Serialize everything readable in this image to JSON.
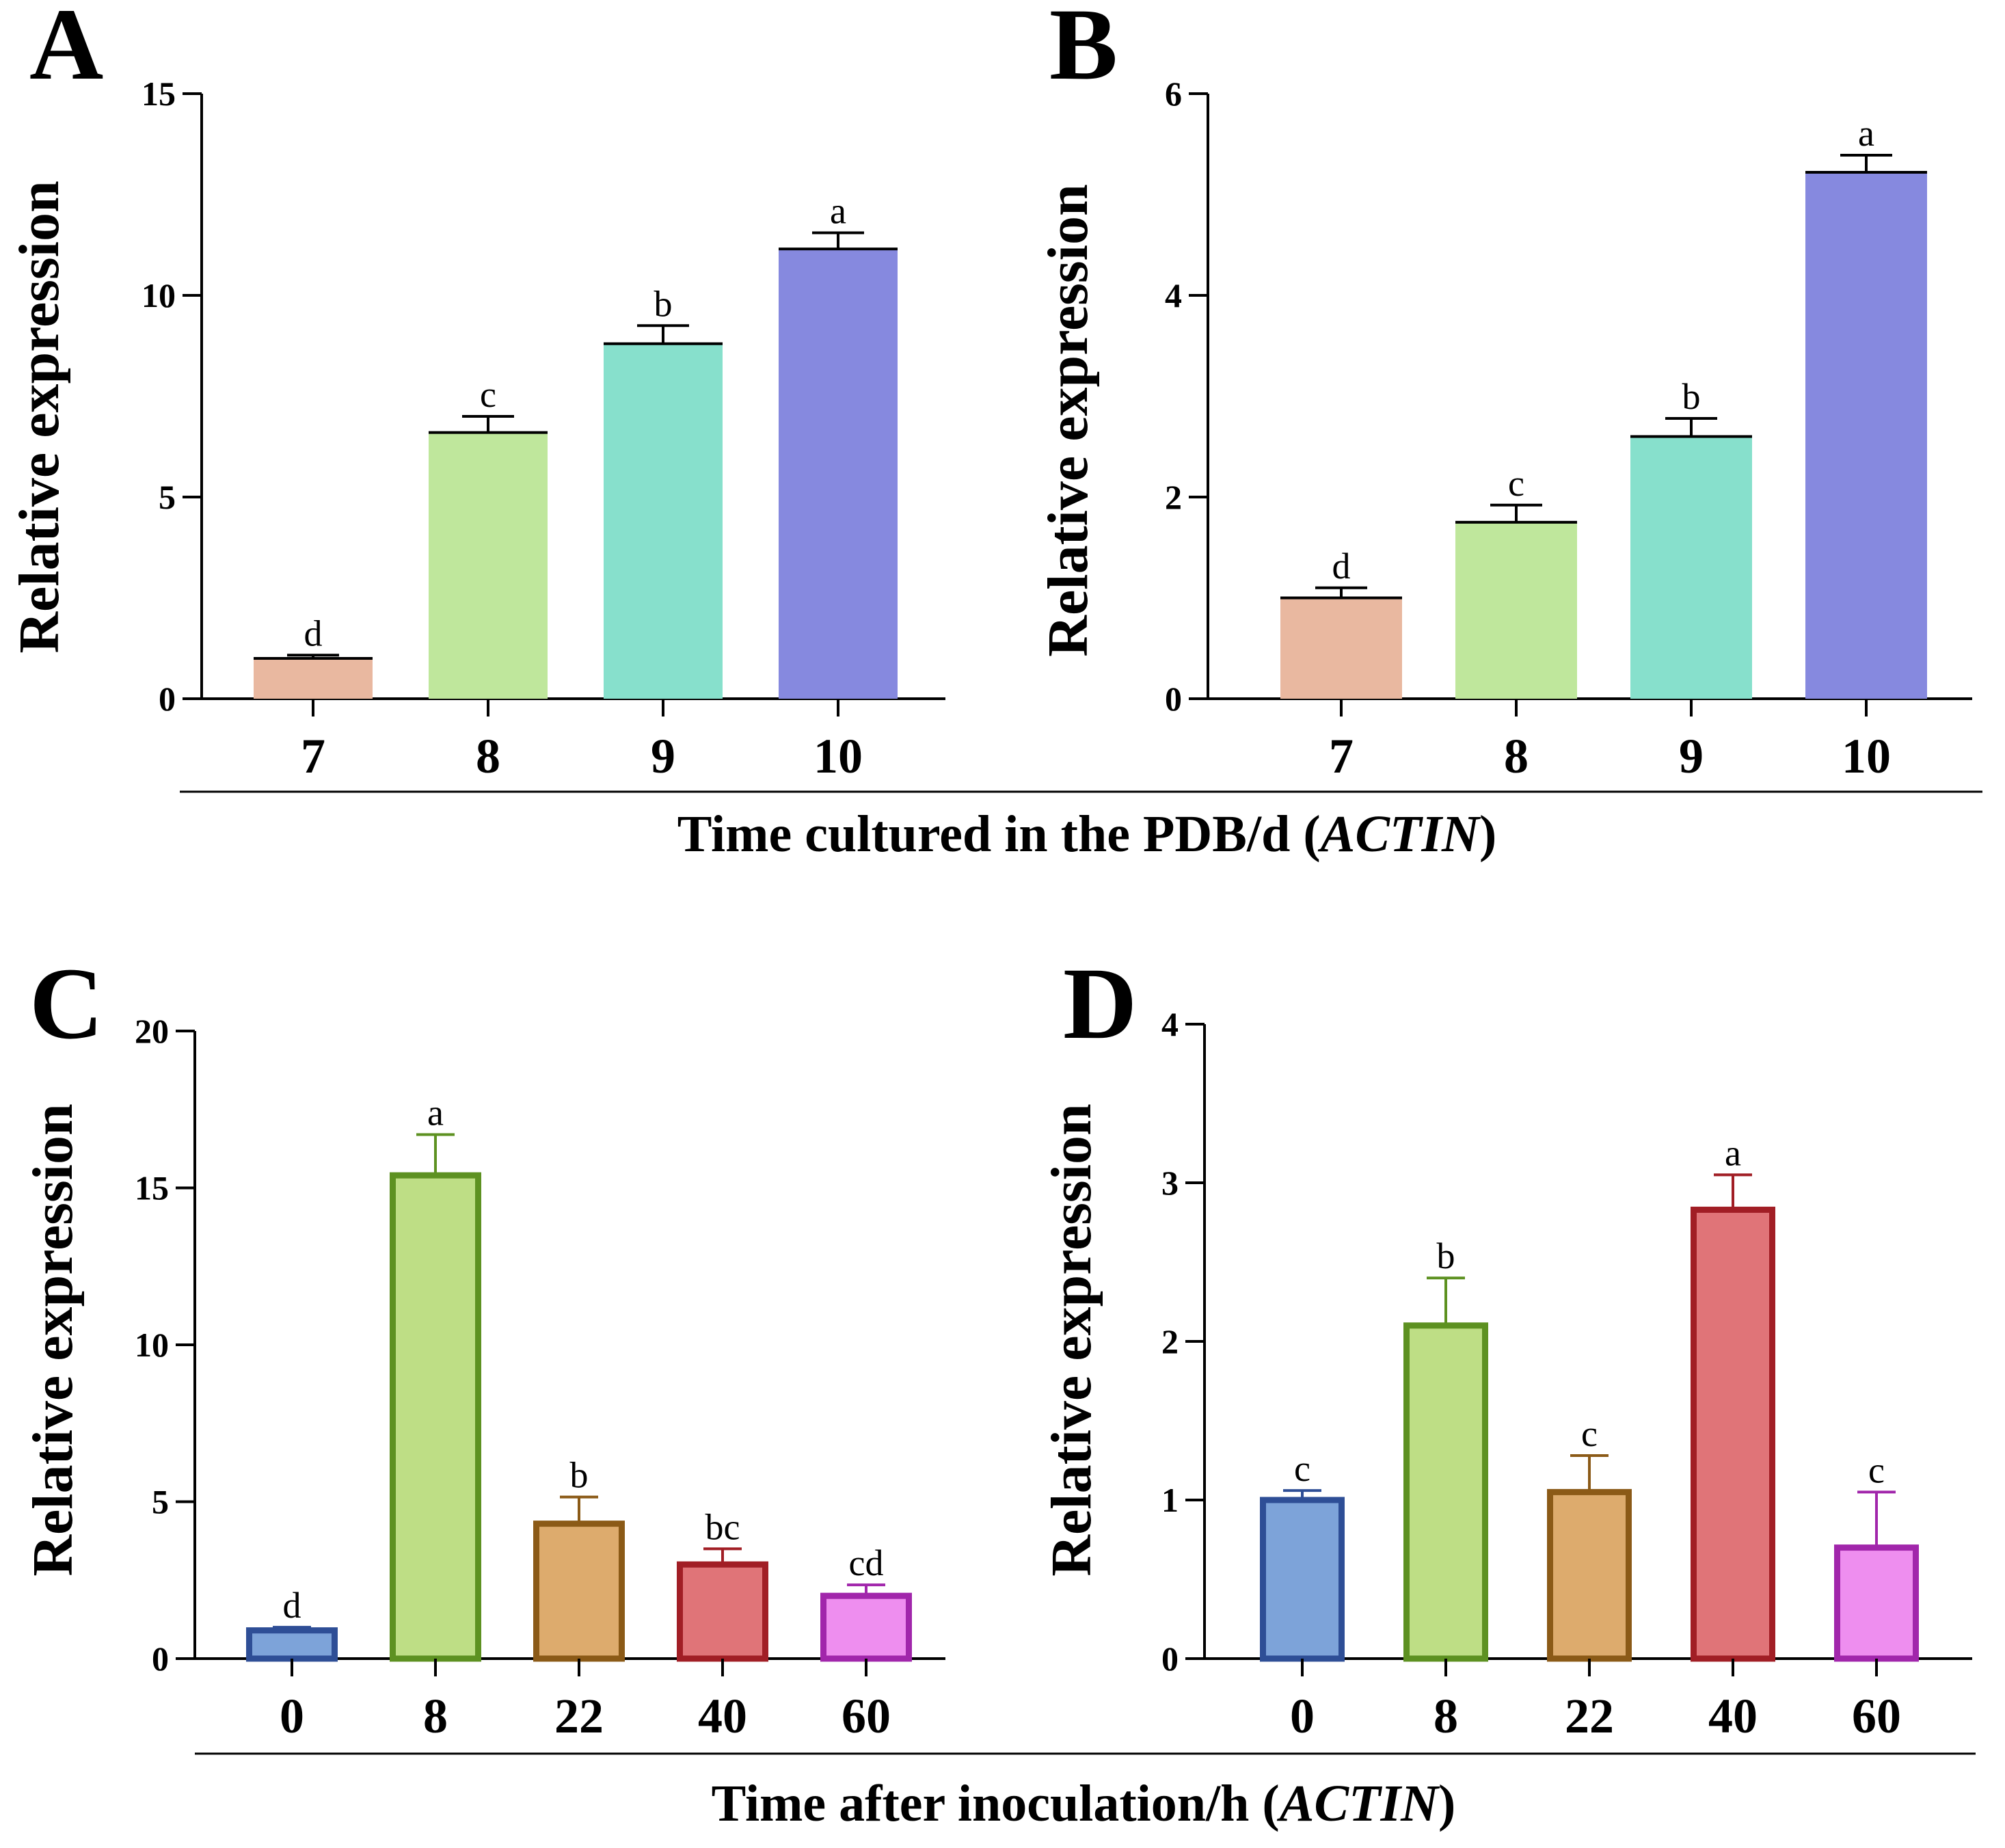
{
  "chart_data": [
    {
      "id": "A",
      "type": "bar",
      "panel_label": "A",
      "ylabel": "Relative expression",
      "categories": [
        "7",
        "8",
        "9",
        "10"
      ],
      "values": [
        1.0,
        6.6,
        8.8,
        11.15
      ],
      "errors": [
        0.08,
        0.4,
        0.45,
        0.4
      ],
      "significance": [
        "d",
        "c",
        "b",
        "a"
      ],
      "colors": [
        "#E9B8A0",
        "#BFE79C",
        "#87E0CC",
        "#8689DF"
      ],
      "outline": false,
      "ylim": [
        0,
        15
      ],
      "yticks": [
        "0",
        "5",
        "10",
        "15"
      ]
    },
    {
      "id": "B",
      "type": "bar",
      "panel_label": "B",
      "ylabel": "Relative expression",
      "categories": [
        "7",
        "8",
        "9",
        "10"
      ],
      "values": [
        1.0,
        1.75,
        2.6,
        5.22
      ],
      "errors": [
        0.1,
        0.17,
        0.18,
        0.17
      ],
      "significance": [
        "d",
        "c",
        "b",
        "a"
      ],
      "colors": [
        "#E9B8A0",
        "#BFE79C",
        "#87E0CC",
        "#8689DF"
      ],
      "outline": false,
      "ylim": [
        0,
        6
      ],
      "yticks": [
        "0",
        "2",
        "4",
        "6"
      ]
    },
    {
      "id": "C",
      "type": "bar",
      "panel_label": "C",
      "ylabel": "Relative expression",
      "categories": [
        "0",
        "8",
        "22",
        "40",
        "60"
      ],
      "values": [
        0.9,
        15.4,
        4.3,
        3.0,
        2.0
      ],
      "errors": [
        0.1,
        1.3,
        0.85,
        0.5,
        0.35
      ],
      "significance": [
        "d",
        "a",
        "b",
        "bc",
        "cd"
      ],
      "colors": [
        "#7DA3D9",
        "#BEDE85",
        "#DDAB6D",
        "#E07478",
        "#EE8EEF"
      ],
      "edge_colors": [
        "#2E4E96",
        "#5D9121",
        "#8B5A17",
        "#A11E25",
        "#A126AB"
      ],
      "outline": true,
      "ylim": [
        0,
        20
      ],
      "yticks": [
        "0",
        "5",
        "10",
        "15",
        "20"
      ]
    },
    {
      "id": "D",
      "type": "bar",
      "panel_label": "D",
      "ylabel": "Relative expression",
      "categories": [
        "0",
        "8",
        "22",
        "40",
        "60"
      ],
      "values": [
        1.0,
        2.1,
        1.05,
        2.83,
        0.7
      ],
      "errors": [
        0.06,
        0.3,
        0.23,
        0.22,
        0.35
      ],
      "significance": [
        "c",
        "b",
        "c",
        "a",
        "c"
      ],
      "colors": [
        "#7DA3D9",
        "#BEDE85",
        "#DDAB6D",
        "#E07478",
        "#EE8EEF"
      ],
      "edge_colors": [
        "#2E4E96",
        "#5D9121",
        "#8B5A17",
        "#A11E25",
        "#A126AB"
      ],
      "outline": true,
      "ylim": [
        0,
        4
      ],
      "yticks": [
        "0",
        "1",
        "2",
        "3",
        "4"
      ]
    }
  ],
  "shared_titles": {
    "top": {
      "main": "Time cultured in the PDB/d (",
      "italic": "ACTIN",
      "close": ")"
    },
    "bottom": {
      "main": "Time after inoculation/h (",
      "italic": "ACTIN",
      "close": ")"
    }
  }
}
